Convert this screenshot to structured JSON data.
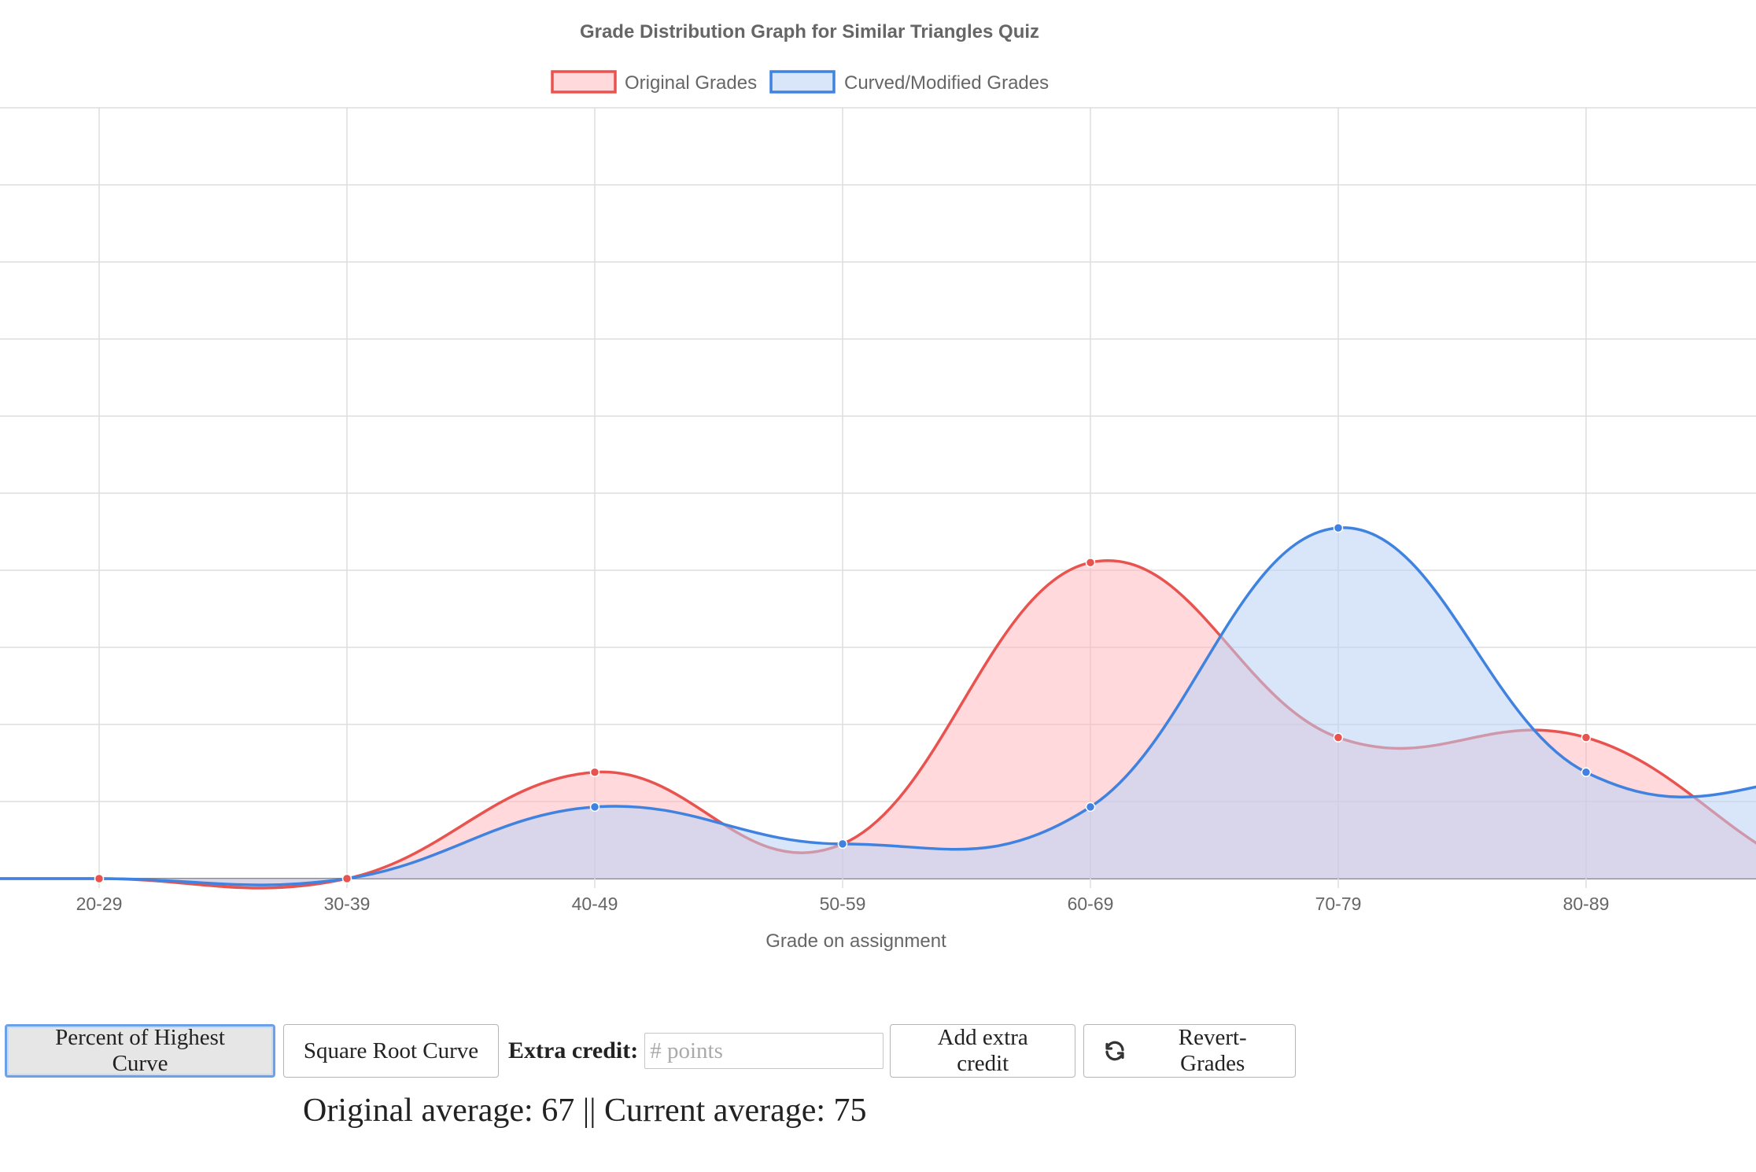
{
  "chart_data": {
    "type": "area",
    "title": "Grade Distribution Graph for Similar Triangles Quiz",
    "xlabel": "Grade on assignment",
    "ylabel": "",
    "categories": [
      "20-29",
      "30-39",
      "40-49",
      "50-59",
      "60-69",
      "70-79",
      "80-89"
    ],
    "series": [
      {
        "name": "Original Grades",
        "values": [
          0,
          0,
          1.38,
          0.45,
          4.1,
          1.83,
          1.83
        ],
        "color": "#e8534f",
        "fill": "rgba(255,180,185,0.5)"
      },
      {
        "name": "Curved/Modified Grades",
        "values": [
          0,
          0,
          0.93,
          0.45,
          0.93,
          4.55,
          1.38
        ],
        "color": "#3f82e0",
        "fill": "rgba(185,210,245,0.55)"
      }
    ],
    "ylim": [
      0,
      10
    ],
    "legend_position": "top",
    "grid": true
  },
  "controls": {
    "percent_curve_label": "Percent of Highest Curve",
    "sqrt_curve_label": "Square Root Curve",
    "extra_credit_label": "Extra credit:",
    "extra_credit_placeholder": "# points",
    "add_extra_credit_label": "Add extra credit",
    "revert_label": "Revert-Grades",
    "revert_icon": "refresh-icon"
  },
  "summary": {
    "text": "Original average: 67 || Current average: 75"
  }
}
